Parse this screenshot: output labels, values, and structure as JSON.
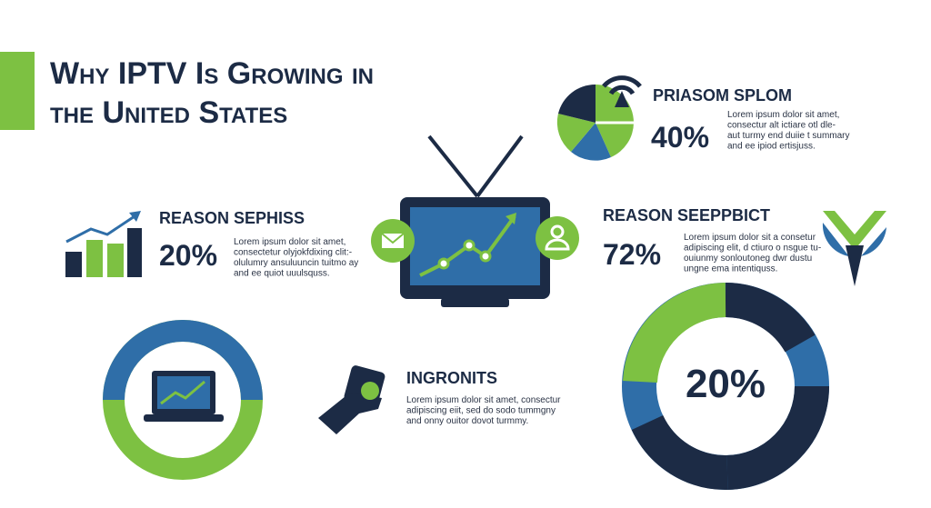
{
  "title": {
    "line1": "Why IPTV Is Growing in",
    "line2": "the United States"
  },
  "sections": [
    {
      "heading": "PRIASOM SPLOM",
      "stat": "40%",
      "body": [
        "Lorem ipsum dolor sit amet,",
        "consectur alt ictiare otl dle-",
        "aut turmy end duiie t summary",
        "and ee ipiod ertisjuss."
      ]
    },
    {
      "heading": "REASON SEPHISS",
      "stat": "20%",
      "body": [
        "Lorem ipsum dolor sit amet,",
        "consectetur olyjokfdixing clit:-",
        "olulumry ansuluuncin tuitmo ay",
        "and ee quiot uuulsquss."
      ]
    },
    {
      "heading": "REASON SEEPPBICT",
      "stat": "72%",
      "body": [
        "Lorem ipsum dolor sit a consetur",
        "adipiscing elit, d ctiuro o nsgue tu-",
        "ouiunmy sonloutoneg dwr dustu",
        "ungne ema intentiquss."
      ]
    },
    {
      "heading": "INGRONITS",
      "body": [
        "Lorem ipsum dolor sit amet, consectur",
        "adipiscing eiit, sed do sodo tummgny",
        "and onny ouitor dovot turmmy."
      ]
    }
  ],
  "donut_label": "20%"
}
